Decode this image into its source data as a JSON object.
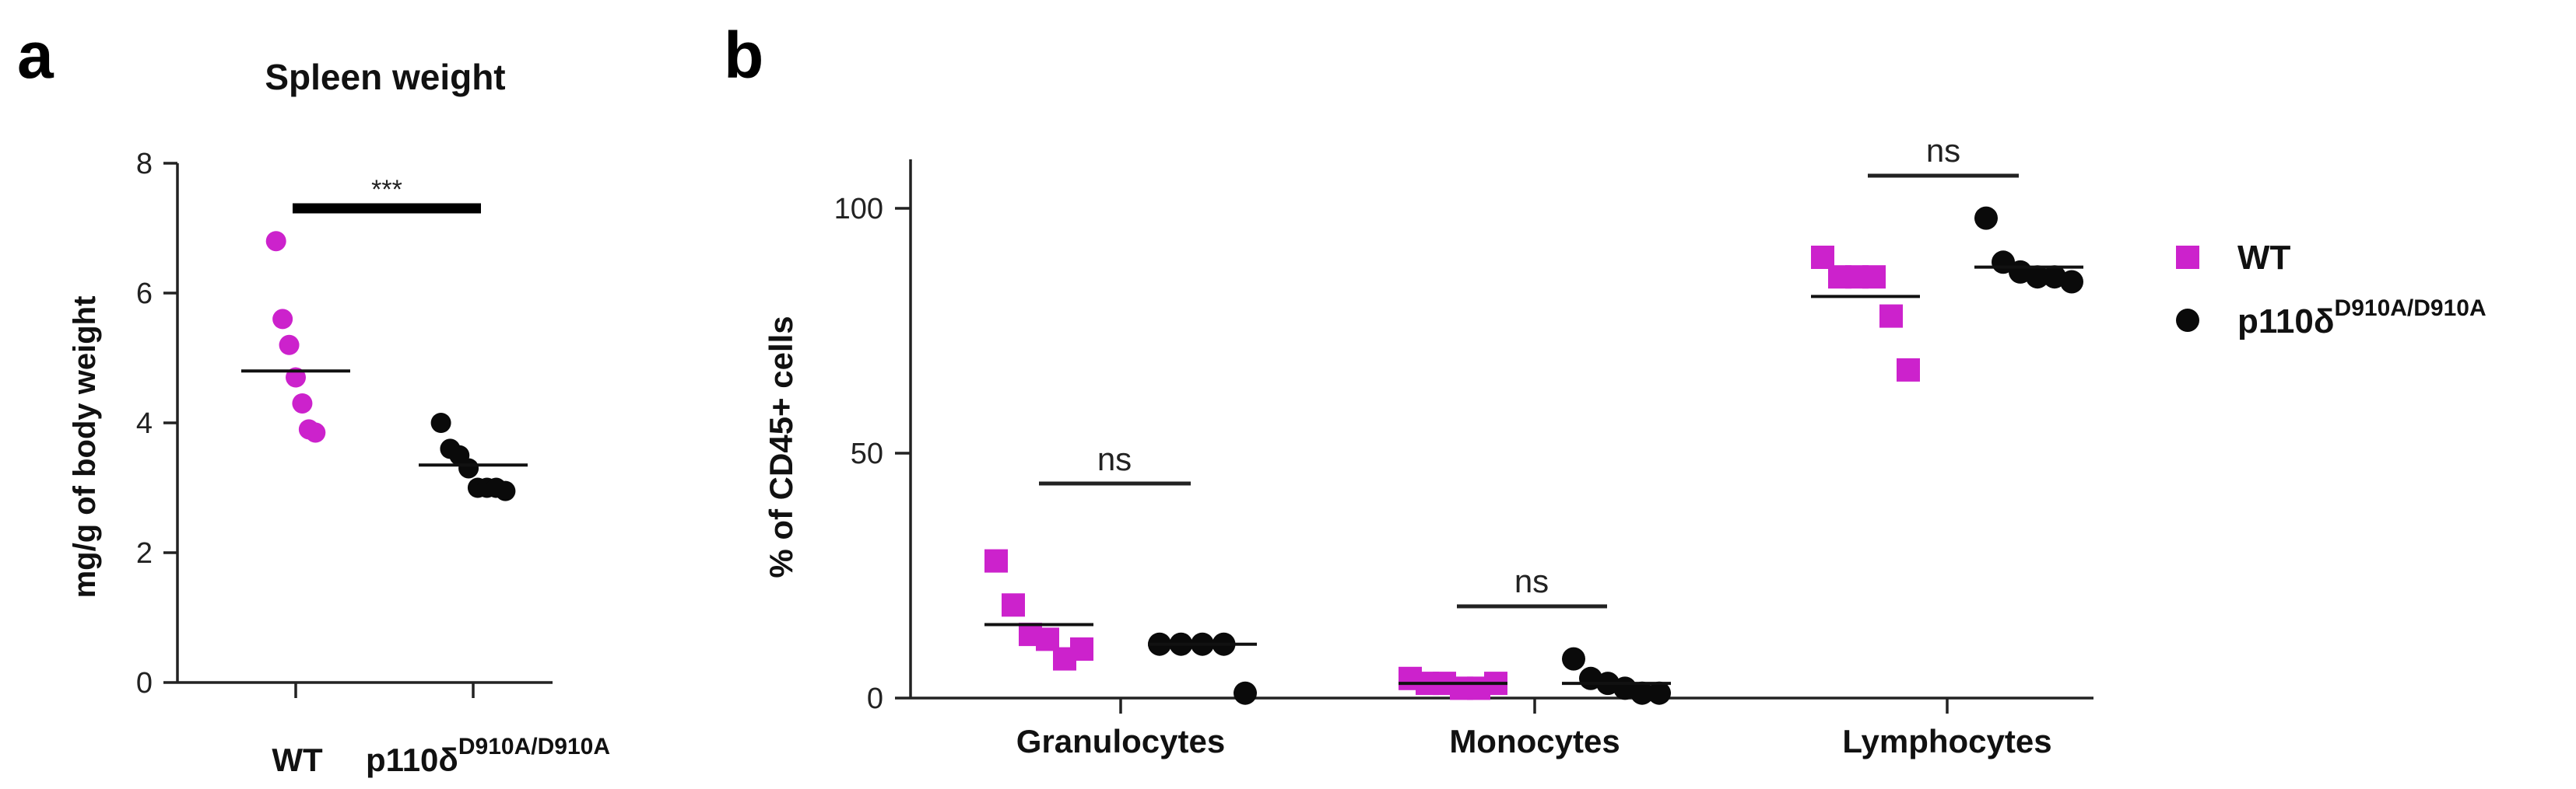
{
  "colors": {
    "wt": "#cc22cc",
    "mut": "#0a0a0a",
    "axis": "#222222"
  },
  "panels": {
    "a": {
      "letter": "a",
      "title": "Spleen weight",
      "ylabel": "mg/g of body weight",
      "significance": "***",
      "groups": {
        "wt": "WT",
        "mut_base": "p110δ",
        "mut_sup": "D910A/D910A"
      }
    },
    "b": {
      "letter": "b",
      "ylabel": "% of CD45+ cells",
      "significance": [
        "ns",
        "ns",
        "ns"
      ],
      "legend": {
        "wt": "WT",
        "mut_base": "p110δ",
        "mut_sup": "D910A/D910A"
      }
    }
  },
  "chart_data": [
    {
      "type": "scatter",
      "title": "Spleen weight",
      "xlabel": "",
      "ylabel": "mg/g of body weight",
      "categories": [
        "WT",
        "p110δD910A/D910A"
      ],
      "ylim": [
        0,
        8
      ],
      "yticks": [
        0,
        2,
        4,
        6,
        8
      ],
      "grid": false,
      "series": [
        {
          "name": "WT",
          "marker": "circle",
          "color": "#cc22cc",
          "values": [
            6.8,
            5.6,
            5.2,
            4.7,
            4.3,
            3.9,
            3.85
          ],
          "mean": 4.8
        },
        {
          "name": "p110δD910A/D910A",
          "marker": "circle",
          "color": "#0a0a0a",
          "values": [
            4.0,
            3.6,
            3.5,
            3.3,
            3.0,
            3.0,
            3.0,
            2.95
          ],
          "mean": 3.35
        }
      ],
      "annotations": [
        {
          "between": [
            "WT",
            "p110δD910A/D910A"
          ],
          "text": "***"
        }
      ]
    },
    {
      "type": "scatter",
      "title": "",
      "xlabel": "",
      "ylabel": "% of CD45+ cells",
      "categories": [
        "Granulocytes",
        "Monocytes",
        "Lymphocytes"
      ],
      "ylim": [
        0,
        110
      ],
      "yticks": [
        0,
        50,
        100
      ],
      "grid": false,
      "legend": "right",
      "series": [
        {
          "name": "WT",
          "marker": "square",
          "color": "#cc22cc",
          "values": [
            [
              28,
              19,
              13,
              12,
              8,
              10
            ],
            [
              4,
              3,
              3,
              2,
              2,
              3
            ],
            [
              90,
              86,
              86,
              86,
              78,
              67
            ]
          ],
          "means": [
            15,
            3,
            82
          ]
        },
        {
          "name": "p110δD910A/D910A",
          "marker": "circle",
          "color": "#0a0a0a",
          "values": [
            [
              11,
              11,
              11,
              11,
              1
            ],
            [
              8,
              4,
              3,
              2,
              1,
              1
            ],
            [
              98,
              89,
              87,
              86,
              86,
              85
            ]
          ],
          "means": [
            11,
            3,
            88
          ]
        }
      ],
      "annotations": [
        {
          "category": "Granulocytes",
          "text": "ns"
        },
        {
          "category": "Monocytes",
          "text": "ns"
        },
        {
          "category": "Lymphocytes",
          "text": "ns"
        }
      ]
    }
  ]
}
